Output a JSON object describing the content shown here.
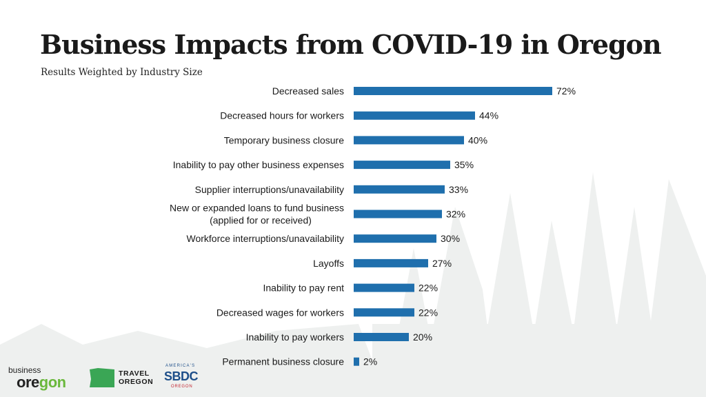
{
  "title": "Business Impacts from COVID-19 in Oregon",
  "subtitle": "Results Weighted by Industry Size",
  "colors": {
    "bar": "#1f6fad",
    "label": "#1a1a1a",
    "forest": "#eef0ef"
  },
  "chart_data": {
    "type": "bar",
    "orientation": "horizontal",
    "title": "Business Impacts from COVID-19 in Oregon",
    "subtitle": "Results Weighted by Industry Size",
    "unit": "%",
    "xlim": [
      0,
      100
    ],
    "grid": false,
    "categories": [
      [
        "Decreased sales"
      ],
      [
        "Decreased hours for workers"
      ],
      [
        "Temporary business closure"
      ],
      [
        "Inability to pay other business expenses"
      ],
      [
        "Supplier interruptions/unavailability"
      ],
      [
        "New or expanded loans to fund business",
        "(applied for or received)"
      ],
      [
        "Workforce interruptions/unavailability"
      ],
      [
        "Layoffs"
      ],
      [
        "Inability to pay rent"
      ],
      [
        "Decreased wages for workers"
      ],
      [
        "Inability to pay workers"
      ],
      [
        "Permanent business closure"
      ]
    ],
    "values": [
      72,
      44,
      40,
      35,
      33,
      32,
      30,
      27,
      22,
      22,
      20,
      2
    ],
    "value_labels": [
      "72%",
      "44%",
      "40%",
      "35%",
      "33%",
      "32%",
      "30%",
      "27%",
      "22%",
      "22%",
      "20%",
      "2%"
    ]
  },
  "logos": {
    "business_oregon": {
      "small": "business",
      "big_prefix": "ore",
      "big_green": "gon"
    },
    "travel_oregon": {
      "line1": "TRAVEL",
      "line2": "OREGON"
    },
    "sbdc": {
      "top": "AMERICA'S",
      "mid": "SBDC",
      "bottom": "OREGON"
    }
  }
}
